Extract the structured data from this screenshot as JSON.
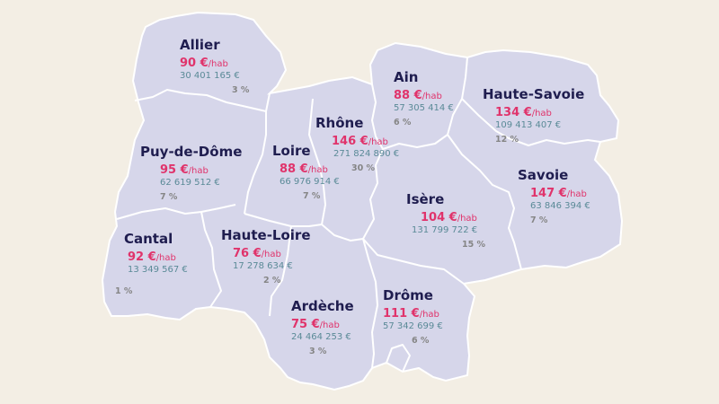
{
  "departments": [
    {
      "id": "allier",
      "name": "Allier",
      "price": "90 €",
      "unit": "/hab",
      "amount": "30 401 165 €",
      "share": "3 %"
    },
    {
      "id": "puy-de-dome",
      "name": "Puy-de-Dôme",
      "price": "95 €",
      "unit": "/hab",
      "amount": "62 619 512 €",
      "share": "7 %"
    },
    {
      "id": "cantal",
      "name": "Cantal",
      "price": "92 €",
      "unit": "/hab",
      "amount": "13 349 567 €",
      "share": "1 %"
    },
    {
      "id": "haute-loire",
      "name": "Haute-Loire",
      "price": "76 €",
      "unit": "/hab",
      "amount": "17 278 634 €",
      "share": "2 %"
    },
    {
      "id": "loire",
      "name": "Loire",
      "price": "88 €",
      "unit": "/hab",
      "amount": "66 976 914 €",
      "share": "7 %"
    },
    {
      "id": "rhone",
      "name": "Rhône",
      "price": "146 €",
      "unit": "/hab",
      "amount": "271 824 890 €",
      "share": "30 %"
    },
    {
      "id": "ain",
      "name": "Ain",
      "price": "88 €",
      "unit": "/hab",
      "amount": "57 305 414 €",
      "share": "6 %"
    },
    {
      "id": "haute-savoie",
      "name": "Haute-Savoie",
      "price": "134 €",
      "unit": "/hab",
      "amount": "109 413 407 €",
      "share": "12 %"
    },
    {
      "id": "savoie",
      "name": "Savoie",
      "price": "147 €",
      "unit": "/hab",
      "amount": "63 846 394 €",
      "share": "7 %"
    },
    {
      "id": "isere",
      "name": "Isère",
      "price": "104 €",
      "unit": "/hab",
      "amount": "131 799 722 €",
      "share": "15 %"
    },
    {
      "id": "ardeche",
      "name": "Ardèche",
      "price": "75 €",
      "unit": "/hab",
      "amount": "24 464 253 €",
      "share": "3 %"
    },
    {
      "id": "drome",
      "name": "Drôme",
      "price": "111 €",
      "unit": "/hab",
      "amount": "57 342 699 €",
      "share": "6 %"
    }
  ],
  "colors": {
    "background": "#f3eee4",
    "region_fill": "#d6d6ea",
    "border": "#ffffff",
    "name": "#1f1d4f",
    "price": "#e0336b",
    "amount": "#5a8a97",
    "share": "#858585"
  }
}
